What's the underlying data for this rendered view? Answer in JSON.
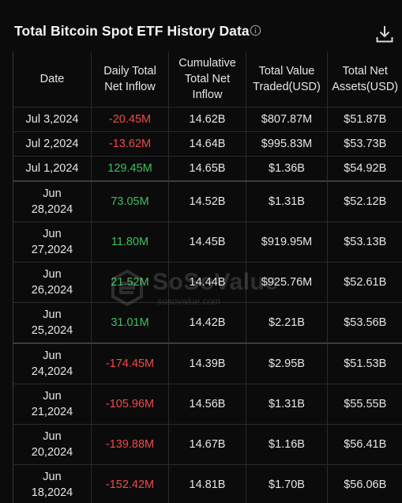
{
  "header": {
    "title": "Total Bitcoin Spot ETF History Data"
  },
  "table": {
    "columns": [
      "Date",
      "Daily Total Net Inflow",
      "Cumulative Total Net Inflow",
      "Total Value Traded(USD)",
      "Total Net Assets(USD)"
    ],
    "rows": [
      {
        "date": "Jul 3,2024",
        "daily": "-20.45M",
        "cumulative": "14.62B",
        "traded": "$807.87M",
        "assets": "$51.87B"
      },
      {
        "date": "Jul 2,2024",
        "daily": "-13.62M",
        "cumulative": "14.64B",
        "traded": "$995.83M",
        "assets": "$53.73B"
      },
      {
        "date": "Jul 1,2024",
        "daily": "129.45M",
        "cumulative": "14.65B",
        "traded": "$1.36B",
        "assets": "$54.92B"
      },
      {
        "date": "Jun 28,2024",
        "daily": "73.05M",
        "cumulative": "14.52B",
        "traded": "$1.31B",
        "assets": "$52.12B"
      },
      {
        "date": "Jun 27,2024",
        "daily": "11.80M",
        "cumulative": "14.45B",
        "traded": "$919.95M",
        "assets": "$53.13B"
      },
      {
        "date": "Jun 26,2024",
        "daily": "21.52M",
        "cumulative": "14.44B",
        "traded": "$925.76M",
        "assets": "$52.61B"
      },
      {
        "date": "Jun 25,2024",
        "daily": "31.01M",
        "cumulative": "14.42B",
        "traded": "$2.21B",
        "assets": "$53.56B"
      },
      {
        "date": "Jun 24,2024",
        "daily": "-174.45M",
        "cumulative": "14.39B",
        "traded": "$2.95B",
        "assets": "$51.53B"
      },
      {
        "date": "Jun 21,2024",
        "daily": "-105.96M",
        "cumulative": "14.56B",
        "traded": "$1.31B",
        "assets": "$55.55B"
      },
      {
        "date": "Jun 20,2024",
        "daily": "-139.88M",
        "cumulative": "14.67B",
        "traded": "$1.16B",
        "assets": "$56.41B"
      },
      {
        "date": "Jun 18,2024",
        "daily": "-152.42M",
        "cumulative": "14.81B",
        "traded": "$1.70B",
        "assets": "$56.06B"
      }
    ]
  },
  "watermark": {
    "brand": "SoSoValue",
    "url": "sosovalue.com"
  },
  "colors": {
    "positive": "#3fbf5f",
    "negative": "#f04a4a",
    "background": "#0b0b0c"
  },
  "icons": {
    "info": "info-circle-icon",
    "download": "download-icon"
  }
}
